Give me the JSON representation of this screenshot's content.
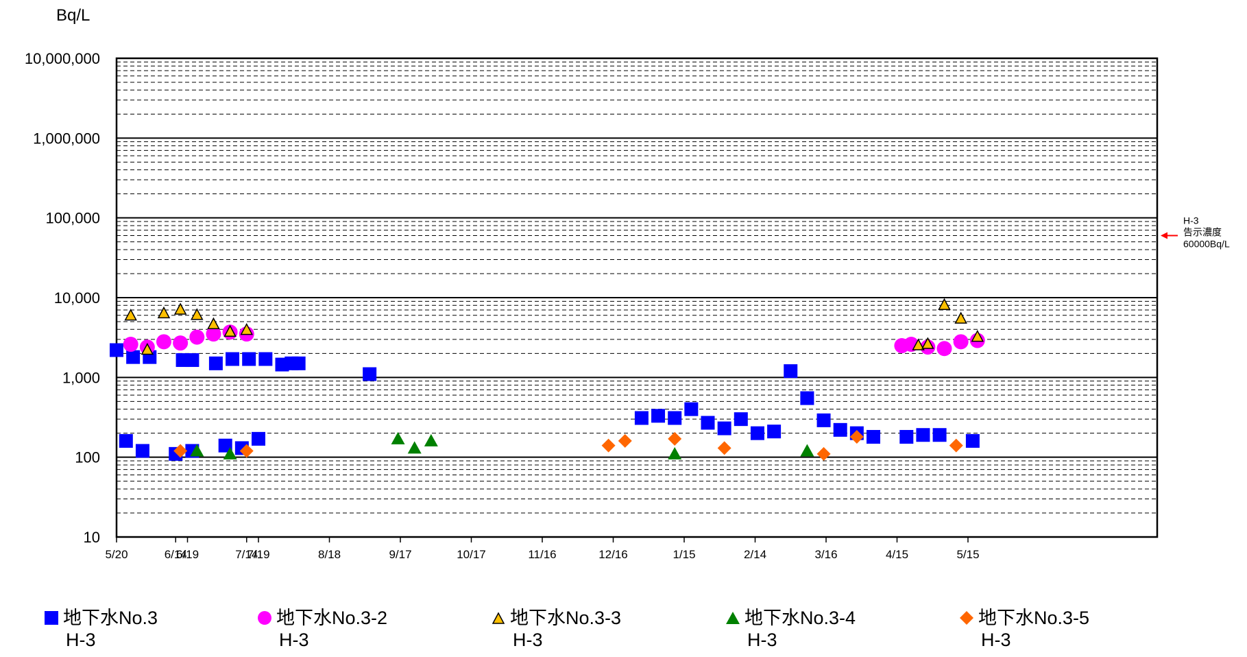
{
  "chart_data": {
    "type": "scatter",
    "ylabel": "Bq/L",
    "yscale": "log",
    "ylim": [
      10,
      10000000
    ],
    "y_ticks": [
      "10",
      "100",
      "1,000",
      "10,000",
      "100,000",
      "1,000,000",
      "10,000,000"
    ],
    "xlim_days": [
      0,
      440
    ],
    "x_ticks": [
      "5/20",
      "6/19",
      "7/19",
      "8/18",
      "9/17",
      "10/17",
      "11/16",
      "12/16",
      "1/15",
      "2/14",
      "3/16",
      "4/15",
      "5/15",
      "6/14",
      "7/14"
    ],
    "grid": true,
    "reference_line": {
      "value": 60000,
      "label_lines": [
        "H-3",
        "告示濃度",
        "60000Bq/L"
      ],
      "color": "#ff0000"
    },
    "series": [
      {
        "name": "地下水No.3",
        "sub": "H-3",
        "marker": "square",
        "color": "#0000ff",
        "points": [
          [
            "5/20",
            2200
          ],
          [
            "5/27",
            1800
          ],
          [
            "6/3",
            1800
          ],
          [
            "6/17",
            1650
          ],
          [
            "6/21",
            1650
          ],
          [
            "7/1",
            1500
          ],
          [
            "7/8",
            1700
          ],
          [
            "7/15",
            1700
          ],
          [
            "7/22",
            1700
          ],
          [
            "7/29",
            1450
          ],
          [
            "8/2",
            1500
          ],
          [
            "8/5",
            1500
          ],
          [
            "9/4",
            1100
          ],
          [
            "12/28",
            310
          ],
          [
            "1/4",
            330
          ],
          [
            "1/11",
            310
          ],
          [
            "1/18",
            400
          ],
          [
            "1/25",
            270
          ],
          [
            "2/1",
            230
          ],
          [
            "2/8",
            300
          ],
          [
            "2/15",
            200
          ],
          [
            "2/22",
            210
          ],
          [
            "3/1",
            1200
          ],
          [
            "3/8",
            550
          ],
          [
            "3/15",
            290
          ],
          [
            "3/22",
            220
          ],
          [
            "3/29",
            200
          ],
          [
            "4/5",
            180
          ],
          [
            "4/19",
            180
          ],
          [
            "4/26",
            190
          ],
          [
            "5/3",
            190
          ],
          [
            "5/17",
            160
          ],
          [
            "5/24",
            160
          ],
          [
            "5/31",
            120
          ],
          [
            "6/14",
            110
          ],
          [
            "6/21",
            120
          ],
          [
            "7/5",
            140
          ],
          [
            "7/12",
            130
          ],
          [
            "7/19",
            170
          ]
        ]
      },
      {
        "name": "地下水No.3-2",
        "sub": "H-3",
        "marker": "circle",
        "color": "#ff00ff",
        "points": [
          [
            "4/17",
            2500
          ],
          [
            "4/21",
            2600
          ],
          [
            "4/28",
            2400
          ],
          [
            "5/5",
            2300
          ],
          [
            "5/12",
            2800
          ],
          [
            "5/19",
            2900
          ],
          [
            "5/26",
            2600
          ],
          [
            "6/2",
            2400
          ],
          [
            "6/9",
            2800
          ],
          [
            "6/16",
            2700
          ],
          [
            "6/23",
            3200
          ],
          [
            "6/30",
            3500
          ],
          [
            "7/7",
            3700
          ],
          [
            "7/14",
            3500
          ]
        ]
      },
      {
        "name": "地下水No.3-3",
        "sub": "H-3",
        "marker": "triangle",
        "color": "#ffc000",
        "points": [
          [
            "4/24",
            2500
          ],
          [
            "4/28",
            2600
          ],
          [
            "5/5",
            8000
          ],
          [
            "5/12",
            5400
          ],
          [
            "5/19",
            3200
          ],
          [
            "5/26",
            5900
          ],
          [
            "6/2",
            2200
          ],
          [
            "6/9",
            6300
          ],
          [
            "6/16",
            7000
          ],
          [
            "6/23",
            6000
          ],
          [
            "6/30",
            4600
          ],
          [
            "7/7",
            3700
          ],
          [
            "7/14",
            3900
          ]
        ]
      },
      {
        "name": "地下水No.3-4",
        "sub": "H-3",
        "marker": "triangle",
        "color": "#008000",
        "points": [
          [
            "9/16",
            170
          ],
          [
            "9/23",
            130
          ],
          [
            "9/30",
            160
          ],
          [
            "1/11",
            110
          ],
          [
            "3/8",
            120
          ],
          [
            "6/23",
            120
          ],
          [
            "7/7",
            110
          ]
        ]
      },
      {
        "name": "地下水No.3-5",
        "sub": "H-3",
        "marker": "diamond",
        "color": "#ff6600",
        "points": [
          [
            "12/14",
            140
          ],
          [
            "12/21",
            160
          ],
          [
            "1/11",
            170
          ],
          [
            "2/1",
            130
          ],
          [
            "3/15",
            110
          ],
          [
            "3/29",
            180
          ],
          [
            "5/10",
            140
          ],
          [
            "6/16",
            120
          ],
          [
            "7/14",
            120
          ]
        ]
      }
    ]
  }
}
